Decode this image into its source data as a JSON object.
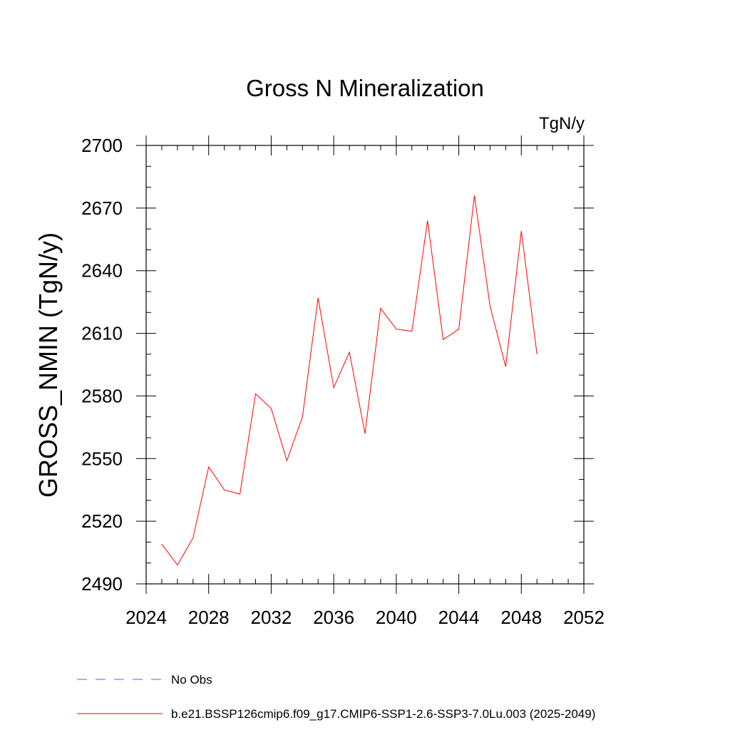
{
  "chart_data": {
    "type": "line",
    "title": "Gross N Mineralization",
    "units": "TgN/y",
    "ylabel": "GROSS_NMIN  (TgN/y)",
    "xlabel": "",
    "xlim": [
      2024,
      2052
    ],
    "ylim": [
      2490,
      2700
    ],
    "xticks": [
      2024,
      2028,
      2032,
      2036,
      2040,
      2044,
      2048,
      2052
    ],
    "yticks": [
      2490,
      2520,
      2550,
      2580,
      2610,
      2640,
      2670,
      2700
    ],
    "xminor_step": 1,
    "yminor_step": 10,
    "series": [
      {
        "name": "b.e21.BSSP126cmip6.f09_g17.CMIP6-SSP1-2.6-SSP3-7.0Lu.003 (2025-2049)",
        "color": "#ff0000",
        "x": [
          2025,
          2026,
          2027,
          2028,
          2029,
          2030,
          2031,
          2032,
          2033,
          2034,
          2035,
          2036,
          2037,
          2038,
          2039,
          2040,
          2041,
          2042,
          2043,
          2044,
          2045,
          2046,
          2047,
          2048,
          2049
        ],
        "values": [
          2509,
          2499,
          2512,
          2546,
          2535,
          2533,
          2581,
          2574,
          2549,
          2570,
          2627,
          2584,
          2601,
          2562,
          2622,
          2612,
          2611,
          2664,
          2607,
          2612,
          2676,
          2623,
          2594,
          2659,
          2600
        ]
      }
    ],
    "legend": [
      {
        "label": "No Obs",
        "color": "#6a5acd",
        "style": "dashed"
      },
      {
        "label": "b.e21.BSSP126cmip6.f09_g17.CMIP6-SSP1-2.6-SSP3-7.0Lu.003 (2025-2049)",
        "color": "#ff0000",
        "style": "solid"
      }
    ],
    "legend_position": "bottom-left",
    "grid": false
  }
}
